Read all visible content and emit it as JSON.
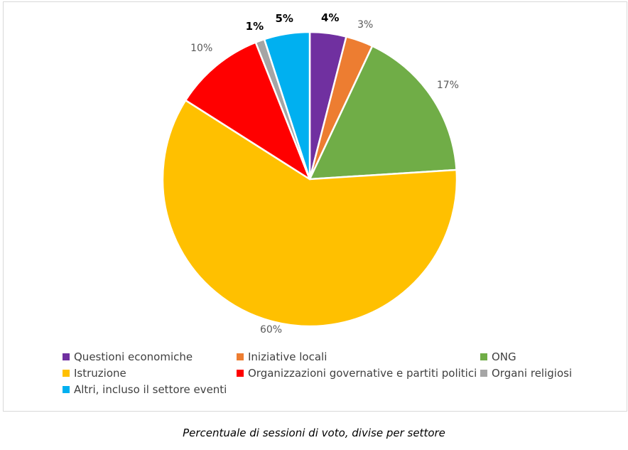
{
  "chart_data": {
    "type": "pie",
    "title": "",
    "categories": [
      "Questioni economiche",
      "Iniziative locali",
      "ONG",
      "Istruzione",
      "Organizzazioni governative e partiti politici",
      "Organi religiosi",
      "Altri, incluso il settore eventi"
    ],
    "values": [
      4,
      3,
      17,
      60,
      10,
      1,
      5
    ],
    "data_labels": [
      "4%",
      "3%",
      "17%",
      "60%",
      "10%",
      "1%",
      "5%"
    ],
    "colors": [
      "#7030a0",
      "#ed7d31",
      "#70ad47",
      "#ffc000",
      "#ff0000",
      "#a5a5a5",
      "#00b0f0"
    ],
    "legend_position": "bottom"
  },
  "caption": "Percentuale di sessioni di voto, divise per settore"
}
